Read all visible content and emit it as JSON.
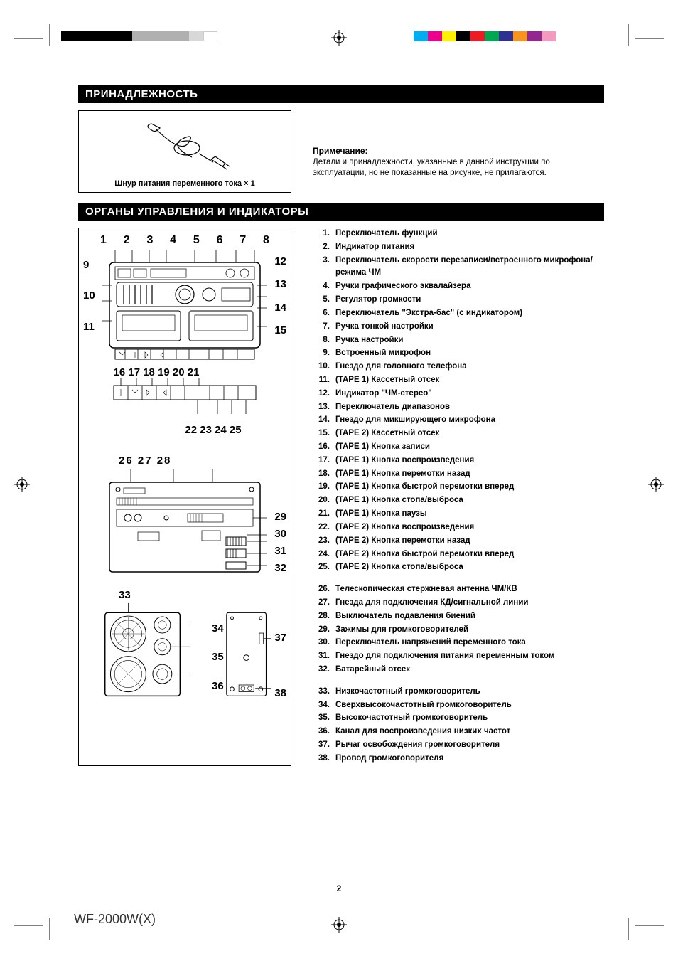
{
  "registration": {
    "colorbar_left": [
      "#000000",
      "#000000",
      "#000000",
      "#000000",
      "#000000",
      "#b0b0b0",
      "#b0b0b0",
      "#b0b0b0",
      "#b0b0b0",
      "#d8d8d8",
      "#ffffff"
    ],
    "colorbar_right": [
      "#00aeef",
      "#ec008c",
      "#fff200",
      "#000000",
      "#ed1c24",
      "#00a651",
      "#2e3192",
      "#f7941d",
      "#92278f",
      "#f49ac1"
    ]
  },
  "section1_title": "ПРИНАДЛЕЖНОСТЬ",
  "accessory": {
    "caption": "Шнур питания переменного тока × 1"
  },
  "note": {
    "title": "Примечание:",
    "body": "Детали и принадлежности, указанные в данной инструкции по эксплуатации, но не показанные на рисунке, не прилагаются."
  },
  "section2_title": "ОРГАНЫ УПРАВЛЕНИЯ И ИНДИКАТОРЫ",
  "diagram1": {
    "top_nums": [
      "1",
      "2",
      "3",
      "4",
      "5",
      "6",
      "7",
      "8"
    ],
    "left_nums": [
      "9",
      "10",
      "11"
    ],
    "right_nums": [
      "12",
      "13",
      "14",
      "15"
    ],
    "mid_nums": "16 17 18 19 20 21",
    "bottom_nums": "22 23 24 25"
  },
  "diagram2": {
    "top_nums": "26   27   28",
    "right_nums": [
      "29",
      "30",
      "31",
      "32"
    ]
  },
  "diagram3": {
    "left_top": "33",
    "mid_nums": [
      "34",
      "35",
      "36"
    ],
    "right_nums": [
      "37",
      "38"
    ]
  },
  "parts": [
    {
      "n": "1.",
      "t": "Переключатель функций"
    },
    {
      "n": "2.",
      "t": "Индикатор питания"
    },
    {
      "n": "3.",
      "t": "Переключатель скорости перезаписи/встроенного микрофона/режима ЧМ"
    },
    {
      "n": "4.",
      "t": "Ручки графического эквалайзера"
    },
    {
      "n": "5.",
      "t": "Регулятор громкости"
    },
    {
      "n": "6.",
      "t": "Переключатель \"Экстра-бас\" (с индикатором)"
    },
    {
      "n": "7.",
      "t": "Ручка тонкой настройки"
    },
    {
      "n": "8.",
      "t": "Ручка настройки"
    },
    {
      "n": "9.",
      "t": "Встроенный микрофон"
    },
    {
      "n": "10.",
      "t": "Гнездо для головного телефона"
    },
    {
      "n": "11.",
      "t": "(TAPE 1) Кассетный отсек"
    },
    {
      "n": "12.",
      "t": "Индикатор \"ЧМ-стерео\""
    },
    {
      "n": "13.",
      "t": "Переключатель диапазонов"
    },
    {
      "n": "14.",
      "t": "Гнездо для микширующего микрофона"
    },
    {
      "n": "15.",
      "t": "(TAPE 2) Кассетный отсек"
    },
    {
      "n": "16.",
      "t": "(TAPE 1) Кнопка записи"
    },
    {
      "n": "17.",
      "t": "(TAPE 1) Кнопка воспроизведения"
    },
    {
      "n": "18.",
      "t": "(TAPE 1) Кнопка перемотки назад"
    },
    {
      "n": "19.",
      "t": "(TAPE 1) Кнопка быстрой перемотки вперед"
    },
    {
      "n": "20.",
      "t": "(TAPE 1) Кнопка стопа/выброса"
    },
    {
      "n": "21.",
      "t": "(TAPE 1) Кнопка паузы"
    },
    {
      "n": "22.",
      "t": "(TAPE 2) Кнопка воспроизведения"
    },
    {
      "n": "23.",
      "t": "(TAPE 2) Кнопка перемотки назад"
    },
    {
      "n": "24.",
      "t": "(TAPE 2) Кнопка быстрой перемотки вперед"
    },
    {
      "n": "25.",
      "t": "(TAPE 2) Кнопка стопа/выброса"
    }
  ],
  "parts2": [
    {
      "n": "26.",
      "t": "Телескопическая стержневая антенна ЧМ/КВ"
    },
    {
      "n": "27.",
      "t": "Гнезда для подключения КД/сигнальной линии"
    },
    {
      "n": "28.",
      "t": "Выключатель подавления биений"
    },
    {
      "n": "29.",
      "t": "Зажимы для громкоговорителей"
    },
    {
      "n": "30.",
      "t": "Переключатель напряжений переменного тока"
    },
    {
      "n": "31.",
      "t": "Гнездо для подключения питания переменным током"
    },
    {
      "n": "32.",
      "t": "Батарейный отсек"
    }
  ],
  "parts3": [
    {
      "n": "33.",
      "t": "Низкочастотный громкоговоритель"
    },
    {
      "n": "34.",
      "t": "Сверхвысокочастотный громкоговоритель"
    },
    {
      "n": "35.",
      "t": "Высокочастотный громкоговоритель"
    },
    {
      "n": "36.",
      "t": "Канал для воспроизведения низких частот"
    },
    {
      "n": "37.",
      "t": "Рычаг освобождения громкоговорителя"
    },
    {
      "n": "38.",
      "t": "Провод громкоговорителя"
    }
  ],
  "page_number": "2",
  "model": "WF-2000W(X)"
}
